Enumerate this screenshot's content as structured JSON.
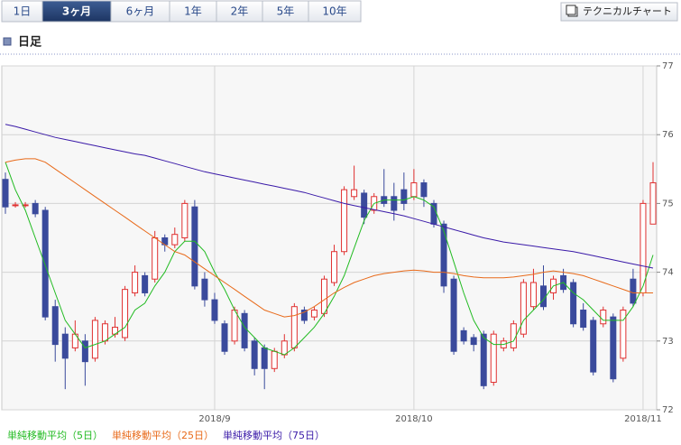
{
  "tabs": [
    "1日",
    "3ヶ月",
    "6ヶ月",
    "1年",
    "2年",
    "5年",
    "10年"
  ],
  "selected_tab": 1,
  "technical_button": "テクニカルチャート",
  "heading": "日足",
  "chart_data": {
    "type": "candlestick",
    "categories": [
      null,
      null,
      null,
      null,
      null,
      null,
      null,
      null,
      null,
      null,
      null,
      null,
      null,
      null,
      null,
      null,
      null,
      null,
      null,
      null,
      null,
      "2018/9",
      null,
      null,
      null,
      null,
      null,
      null,
      null,
      null,
      null,
      null,
      null,
      null,
      null,
      null,
      null,
      null,
      null,
      null,
      null,
      "2018/10",
      null,
      null,
      null,
      null,
      null,
      null,
      null,
      null,
      null,
      null,
      null,
      null,
      null,
      null,
      null,
      null,
      null,
      null,
      null,
      null,
      null,
      null,
      "2018/11",
      null
    ],
    "open": [
      75.35,
      74.98,
      74.98,
      75.0,
      74.9,
      73.5,
      73.1,
      72.9,
      73.0,
      72.75,
      73.0,
      73.1,
      73.05,
      73.7,
      73.95,
      73.9,
      74.5,
      74.4,
      74.5,
      74.95,
      73.9,
      73.6,
      73.25,
      73.0,
      73.4,
      73.0,
      72.9,
      72.6,
      72.8,
      72.9,
      73.45,
      73.35,
      73.4,
      73.85,
      74.3,
      75.1,
      75.15,
      74.9,
      75.1,
      75.1,
      75.2,
      75.1,
      75.3,
      75.0,
      74.7,
      73.9,
      73.15,
      73.05,
      73.1,
      72.4,
      72.9,
      72.9,
      73.1,
      73.5,
      73.8,
      73.7,
      73.95,
      73.85,
      73.45,
      73.3,
      73.25,
      73.35,
      72.75,
      73.9,
      73.7,
      74.7
    ],
    "high": [
      75.45,
      75.02,
      75.02,
      75.05,
      74.95,
      73.6,
      73.2,
      73.3,
      73.1,
      73.35,
      73.3,
      73.35,
      73.8,
      74.1,
      74.0,
      74.6,
      74.55,
      74.65,
      75.05,
      75.05,
      74.0,
      73.7,
      73.3,
      73.5,
      73.45,
      73.05,
      72.95,
      72.9,
      73.1,
      73.55,
      73.5,
      73.5,
      73.95,
      74.4,
      75.25,
      75.55,
      75.2,
      75.15,
      75.5,
      75.3,
      75.45,
      75.5,
      75.35,
      75.05,
      74.75,
      73.95,
      73.2,
      73.1,
      73.15,
      73.15,
      73.05,
      73.3,
      73.9,
      74.05,
      74.1,
      73.95,
      74.05,
      73.9,
      73.55,
      73.35,
      73.5,
      73.4,
      73.5,
      74.05,
      75.05,
      75.6
    ],
    "low": [
      74.85,
      74.94,
      74.94,
      74.8,
      73.3,
      72.7,
      72.3,
      72.85,
      72.35,
      72.7,
      72.95,
      73.05,
      73.0,
      73.65,
      73.65,
      73.85,
      74.3,
      74.35,
      74.45,
      73.75,
      73.5,
      73.25,
      72.8,
      72.95,
      72.85,
      72.5,
      72.3,
      72.55,
      72.75,
      72.85,
      73.25,
      73.3,
      73.35,
      73.8,
      74.25,
      75.05,
      74.7,
      74.85,
      74.95,
      74.75,
      74.9,
      75.05,
      74.95,
      74.65,
      73.7,
      72.8,
      72.95,
      72.85,
      72.3,
      72.35,
      72.85,
      72.85,
      73.05,
      73.45,
      73.45,
      73.6,
      73.7,
      73.2,
      73.15,
      72.5,
      73.2,
      72.4,
      72.7,
      73.5,
      73.65,
      74.7
    ],
    "close": [
      74.95,
      74.98,
      74.98,
      74.85,
      73.35,
      72.95,
      72.75,
      73.1,
      72.7,
      73.3,
      73.25,
      73.2,
      73.75,
      74.0,
      73.7,
      74.5,
      74.4,
      74.55,
      75.0,
      73.8,
      73.6,
      73.3,
      72.85,
      73.45,
      72.9,
      72.6,
      72.6,
      72.85,
      73.0,
      73.5,
      73.3,
      73.45,
      73.9,
      74.3,
      75.2,
      75.2,
      74.8,
      75.1,
      75.0,
      74.9,
      75.0,
      75.3,
      75.1,
      74.7,
      73.8,
      72.85,
      73.0,
      72.95,
      72.35,
      73.1,
      73.0,
      73.25,
      73.85,
      73.85,
      73.5,
      73.9,
      73.75,
      73.25,
      73.2,
      72.55,
      73.45,
      72.45,
      73.45,
      73.55,
      75.0,
      75.3
    ],
    "up_color": "#e03030",
    "down_color": "#3a4a9c",
    "series": [
      {
        "name": "単純移動平均（5日）",
        "color": "#22bb22",
        "values": [
          75.6,
          75.2,
          74.9,
          74.5,
          74.1,
          73.7,
          73.3,
          73.1,
          72.9,
          72.95,
          73.0,
          73.1,
          73.2,
          73.45,
          73.55,
          73.8,
          74.0,
          74.3,
          74.45,
          74.45,
          74.3,
          74.0,
          73.75,
          73.45,
          73.2,
          73.05,
          72.9,
          72.85,
          72.8,
          72.9,
          73.05,
          73.2,
          73.4,
          73.65,
          73.95,
          74.35,
          74.75,
          75.0,
          75.05,
          75.05,
          75.05,
          75.1,
          75.05,
          74.95,
          74.6,
          74.15,
          73.7,
          73.3,
          73.05,
          72.95,
          72.95,
          73.0,
          73.3,
          73.45,
          73.6,
          73.8,
          73.85,
          73.7,
          73.6,
          73.45,
          73.3,
          73.3,
          73.3,
          73.5,
          73.8,
          74.25
        ]
      },
      {
        "name": "単純移動平均（25日）",
        "color": "#e86a1a",
        "values": [
          75.6,
          75.63,
          75.65,
          75.65,
          75.6,
          75.5,
          75.4,
          75.3,
          75.2,
          75.1,
          75.0,
          74.9,
          74.8,
          74.7,
          74.6,
          74.5,
          74.4,
          74.3,
          74.25,
          74.15,
          74.05,
          73.95,
          73.85,
          73.75,
          73.65,
          73.55,
          73.45,
          73.4,
          73.35,
          73.37,
          73.42,
          73.5,
          73.6,
          73.7,
          73.78,
          73.85,
          73.9,
          73.95,
          73.98,
          74.0,
          74.02,
          74.03,
          74.02,
          74.0,
          74.0,
          73.98,
          73.95,
          73.93,
          73.92,
          73.92,
          73.92,
          73.93,
          73.95,
          73.97,
          74.0,
          74.02,
          74.0,
          73.98,
          73.95,
          73.9,
          73.85,
          73.8,
          73.75,
          73.7,
          73.7,
          73.7
        ]
      },
      {
        "name": "単純移動平均（75日）",
        "color": "#3a1aa8",
        "values": [
          76.15,
          76.12,
          76.08,
          76.04,
          76.0,
          75.96,
          75.93,
          75.9,
          75.87,
          75.84,
          75.81,
          75.78,
          75.75,
          75.72,
          75.7,
          75.66,
          75.62,
          75.58,
          75.54,
          75.5,
          75.46,
          75.43,
          75.4,
          75.37,
          75.34,
          75.31,
          75.28,
          75.25,
          75.22,
          75.19,
          75.16,
          75.12,
          75.08,
          75.04,
          75.0,
          74.97,
          74.94,
          74.91,
          74.88,
          74.85,
          74.82,
          74.78,
          74.74,
          74.7,
          74.66,
          74.62,
          74.58,
          74.54,
          74.5,
          74.47,
          74.44,
          74.42,
          74.4,
          74.38,
          74.36,
          74.34,
          74.32,
          74.3,
          74.27,
          74.24,
          74.21,
          74.18,
          74.15,
          74.12,
          74.09,
          74.06
        ]
      }
    ],
    "ylim": [
      72,
      77
    ],
    "yticks": [
      72,
      73,
      74,
      75,
      76,
      77
    ],
    "grid": true
  }
}
